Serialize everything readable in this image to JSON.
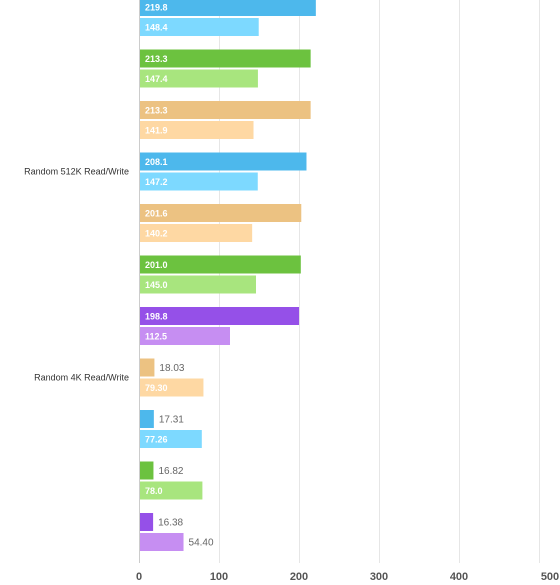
{
  "chart_data": {
    "type": "bar",
    "orientation": "horizontal",
    "xlim": [
      0,
      500
    ],
    "ticks": [
      "0",
      "100",
      "200",
      "300",
      "400",
      "500"
    ],
    "grid": true,
    "palette": {
      "blue": [
        "#4db8ec",
        "#7dd9ff"
      ],
      "green": [
        "#6cc23f",
        "#a8e57e"
      ],
      "orange": [
        "#ecc282",
        "#fed8a3"
      ],
      "purple": [
        "#9550e8",
        "#c68ef2"
      ]
    },
    "groups": [
      {
        "category": "",
        "color": "blue",
        "values": [
          219.8,
          148.4
        ],
        "labels": [
          "219.8",
          "148.4"
        ]
      },
      {
        "category": "",
        "color": "green",
        "values": [
          213.3,
          147.4
        ],
        "labels": [
          "213.3",
          "147.4"
        ]
      },
      {
        "category": "",
        "color": "orange",
        "values": [
          213.3,
          141.9
        ],
        "labels": [
          "213.3",
          "141.9"
        ]
      },
      {
        "category": "Random 512K Read/Write",
        "color": "blue",
        "values": [
          208.1,
          147.2
        ],
        "labels": [
          "208.1",
          "147.2"
        ]
      },
      {
        "category": "",
        "color": "orange",
        "values": [
          201.6,
          140.2
        ],
        "labels": [
          "201.6",
          "140.2"
        ]
      },
      {
        "category": "",
        "color": "green",
        "values": [
          201.0,
          145.0
        ],
        "labels": [
          "201.0",
          "145.0"
        ]
      },
      {
        "category": "",
        "color": "purple",
        "values": [
          198.8,
          112.5
        ],
        "labels": [
          "198.8",
          "112.5"
        ]
      },
      {
        "category": "Random 4K Read/Write",
        "color": "orange",
        "values": [
          18.03,
          79.3
        ],
        "labels": [
          "18.03",
          "79.30"
        ]
      },
      {
        "category": "",
        "color": "blue",
        "values": [
          17.31,
          77.26
        ],
        "labels": [
          "17.31",
          "77.26"
        ]
      },
      {
        "category": "",
        "color": "green",
        "values": [
          16.82,
          78.0
        ],
        "labels": [
          "16.82",
          "78.0"
        ]
      },
      {
        "category": "",
        "color": "purple",
        "values": [
          16.38,
          54.4
        ],
        "labels": [
          "16.38",
          "54.40"
        ]
      }
    ]
  }
}
